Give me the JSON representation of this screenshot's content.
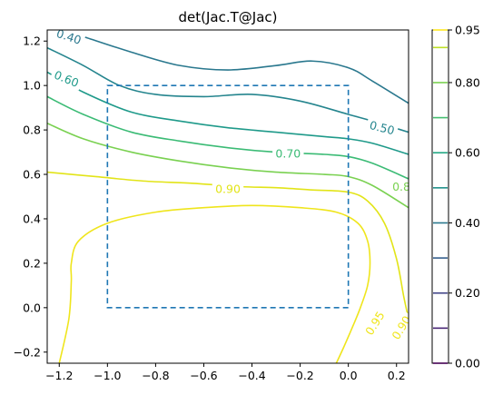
{
  "chart_data": {
    "type": "contour",
    "title": "det(Jac.T@Jac)",
    "xlabel": "",
    "ylabel": "",
    "xlim": [
      -1.25,
      0.25
    ],
    "ylim": [
      -0.25,
      1.25
    ],
    "x_ticks": [
      -1.2,
      -1.0,
      -0.8,
      -0.6,
      -0.4,
      -0.2,
      0.0,
      0.2
    ],
    "x_tick_labels": [
      "−1.2",
      "−1.0",
      "−0.8",
      "−0.6",
      "−0.4",
      "−0.2",
      "0.0",
      "0.2"
    ],
    "y_ticks": [
      -0.2,
      0.0,
      0.2,
      0.4,
      0.6,
      0.8,
      1.0,
      1.2
    ],
    "y_tick_labels": [
      "−0.2",
      "0.0",
      "0.2",
      "0.4",
      "0.6",
      "0.8",
      "1.0",
      "1.2"
    ],
    "grid": false,
    "contour_levels": [
      {
        "level": 0.4,
        "color": "#2a788e",
        "points": [
          [
            -1.25,
            1.27
          ],
          [
            -1.1,
            1.22
          ],
          [
            -0.9,
            1.15
          ],
          [
            -0.7,
            1.09
          ],
          [
            -0.5,
            1.07
          ],
          [
            -0.3,
            1.09
          ],
          [
            -0.15,
            1.11
          ],
          [
            0.0,
            1.08
          ],
          [
            0.1,
            1.02
          ],
          [
            0.25,
            0.92
          ]
        ]
      },
      {
        "level": 0.5,
        "color": "#25858e",
        "points": [
          [
            -1.25,
            1.17
          ],
          [
            -1.1,
            1.09
          ],
          [
            -0.95,
            1.0
          ],
          [
            -0.8,
            0.96
          ],
          [
            -0.6,
            0.95
          ],
          [
            -0.4,
            0.96
          ],
          [
            -0.2,
            0.93
          ],
          [
            0.0,
            0.87
          ],
          [
            0.1,
            0.84
          ],
          [
            0.25,
            0.79
          ]
        ]
      },
      {
        "level": 0.6,
        "color": "#1f9a8a",
        "points": [
          [
            -1.25,
            1.06
          ],
          [
            -1.1,
            0.97
          ],
          [
            -0.9,
            0.88
          ],
          [
            -0.7,
            0.84
          ],
          [
            -0.5,
            0.81
          ],
          [
            -0.3,
            0.79
          ],
          [
            -0.1,
            0.77
          ],
          [
            0.0,
            0.76
          ],
          [
            0.1,
            0.74
          ],
          [
            0.25,
            0.69
          ]
        ]
      },
      {
        "level": 0.7,
        "color": "#3bbb75",
        "points": [
          [
            -1.25,
            0.95
          ],
          [
            -1.1,
            0.87
          ],
          [
            -0.9,
            0.79
          ],
          [
            -0.7,
            0.75
          ],
          [
            -0.5,
            0.72
          ],
          [
            -0.3,
            0.7
          ],
          [
            -0.1,
            0.69
          ],
          [
            0.0,
            0.68
          ],
          [
            0.1,
            0.65
          ],
          [
            0.25,
            0.58
          ]
        ]
      },
      {
        "level": 0.8,
        "color": "#7ad151",
        "points": [
          [
            -1.25,
            0.83
          ],
          [
            -1.1,
            0.76
          ],
          [
            -0.9,
            0.7
          ],
          [
            -0.7,
            0.66
          ],
          [
            -0.5,
            0.63
          ],
          [
            -0.3,
            0.61
          ],
          [
            -0.1,
            0.6
          ],
          [
            0.0,
            0.59
          ],
          [
            0.1,
            0.55
          ],
          [
            0.25,
            0.45
          ]
        ]
      },
      {
        "level": 0.9,
        "color": "#e2e418",
        "points": [
          [
            -1.25,
            0.61
          ],
          [
            -1.05,
            0.59
          ],
          [
            -0.85,
            0.57
          ],
          [
            -0.65,
            0.56
          ],
          [
            -0.45,
            0.545
          ],
          [
            -0.3,
            0.54
          ],
          [
            -0.15,
            0.53
          ],
          [
            0.0,
            0.52
          ],
          [
            0.08,
            0.48
          ],
          [
            0.15,
            0.38
          ],
          [
            0.2,
            0.22
          ],
          [
            0.23,
            0.05
          ],
          [
            0.25,
            -0.05
          ]
        ]
      },
      {
        "level": 0.95,
        "color": "#efe51c",
        "points": [
          [
            -1.2,
            -0.25
          ],
          [
            -1.16,
            -0.05
          ],
          [
            -1.15,
            0.12
          ],
          [
            -1.15,
            0.2
          ],
          [
            -1.12,
            0.3
          ],
          [
            -1.0,
            0.38
          ],
          [
            -0.8,
            0.43
          ],
          [
            -0.6,
            0.45
          ],
          [
            -0.4,
            0.46
          ],
          [
            -0.2,
            0.45
          ],
          [
            -0.05,
            0.43
          ],
          [
            0.04,
            0.38
          ],
          [
            0.08,
            0.3
          ],
          [
            0.09,
            0.2
          ],
          [
            0.08,
            0.1
          ],
          [
            0.05,
            0.0
          ],
          [
            0.02,
            -0.08
          ],
          [
            -0.02,
            -0.18
          ],
          [
            -0.05,
            -0.25
          ]
        ]
      }
    ],
    "contour_labels": [
      {
        "text": "0.40",
        "x": -1.16,
        "y": 1.22,
        "color": "#2a788e",
        "angle": 18
      },
      {
        "text": "0.50",
        "x": 0.14,
        "y": 0.81,
        "color": "#25858e",
        "angle": 14
      },
      {
        "text": "0.60",
        "x": -1.17,
        "y": 1.03,
        "color": "#1f9a8a",
        "angle": 22
      },
      {
        "text": "0.70",
        "x": -0.25,
        "y": 0.695,
        "color": "#3bbb75",
        "angle": 0
      },
      {
        "text": "0.8",
        "x": 0.22,
        "y": 0.545,
        "color": "#7ad151",
        "angle": 0
      },
      {
        "text": "0.90",
        "x": -0.5,
        "y": 0.535,
        "color": "#e2e418",
        "angle": 0
      },
      {
        "text": "0.95",
        "x": 0.11,
        "y": -0.07,
        "color": "#efe51c",
        "angle": -58
      },
      {
        "text": "0.90",
        "x": 0.22,
        "y": -0.09,
        "color": "#efe51c",
        "angle": -58
      }
    ],
    "dashed_box": {
      "x": [
        -1.0,
        0.0
      ],
      "y": [
        0.0,
        1.0
      ],
      "color": "#1f77b4"
    },
    "colorbar": {
      "min": 0.0,
      "max": 0.95,
      "levels": [
        0.0,
        0.1,
        0.2,
        0.3,
        0.4,
        0.5,
        0.6,
        0.7,
        0.8,
        0.9,
        0.95
      ],
      "level_colors": [
        "#440154",
        "#482475",
        "#414487",
        "#355f8d",
        "#2a788e",
        "#21918c",
        "#22a884",
        "#44bf70",
        "#7ad151",
        "#bddf26",
        "#fde725"
      ],
      "tick_values": [
        0.0,
        0.2,
        0.4,
        0.6,
        0.8,
        0.95
      ],
      "tick_labels": [
        "0.00",
        "0.20",
        "0.40",
        "0.60",
        "0.80",
        "0.95"
      ]
    }
  }
}
